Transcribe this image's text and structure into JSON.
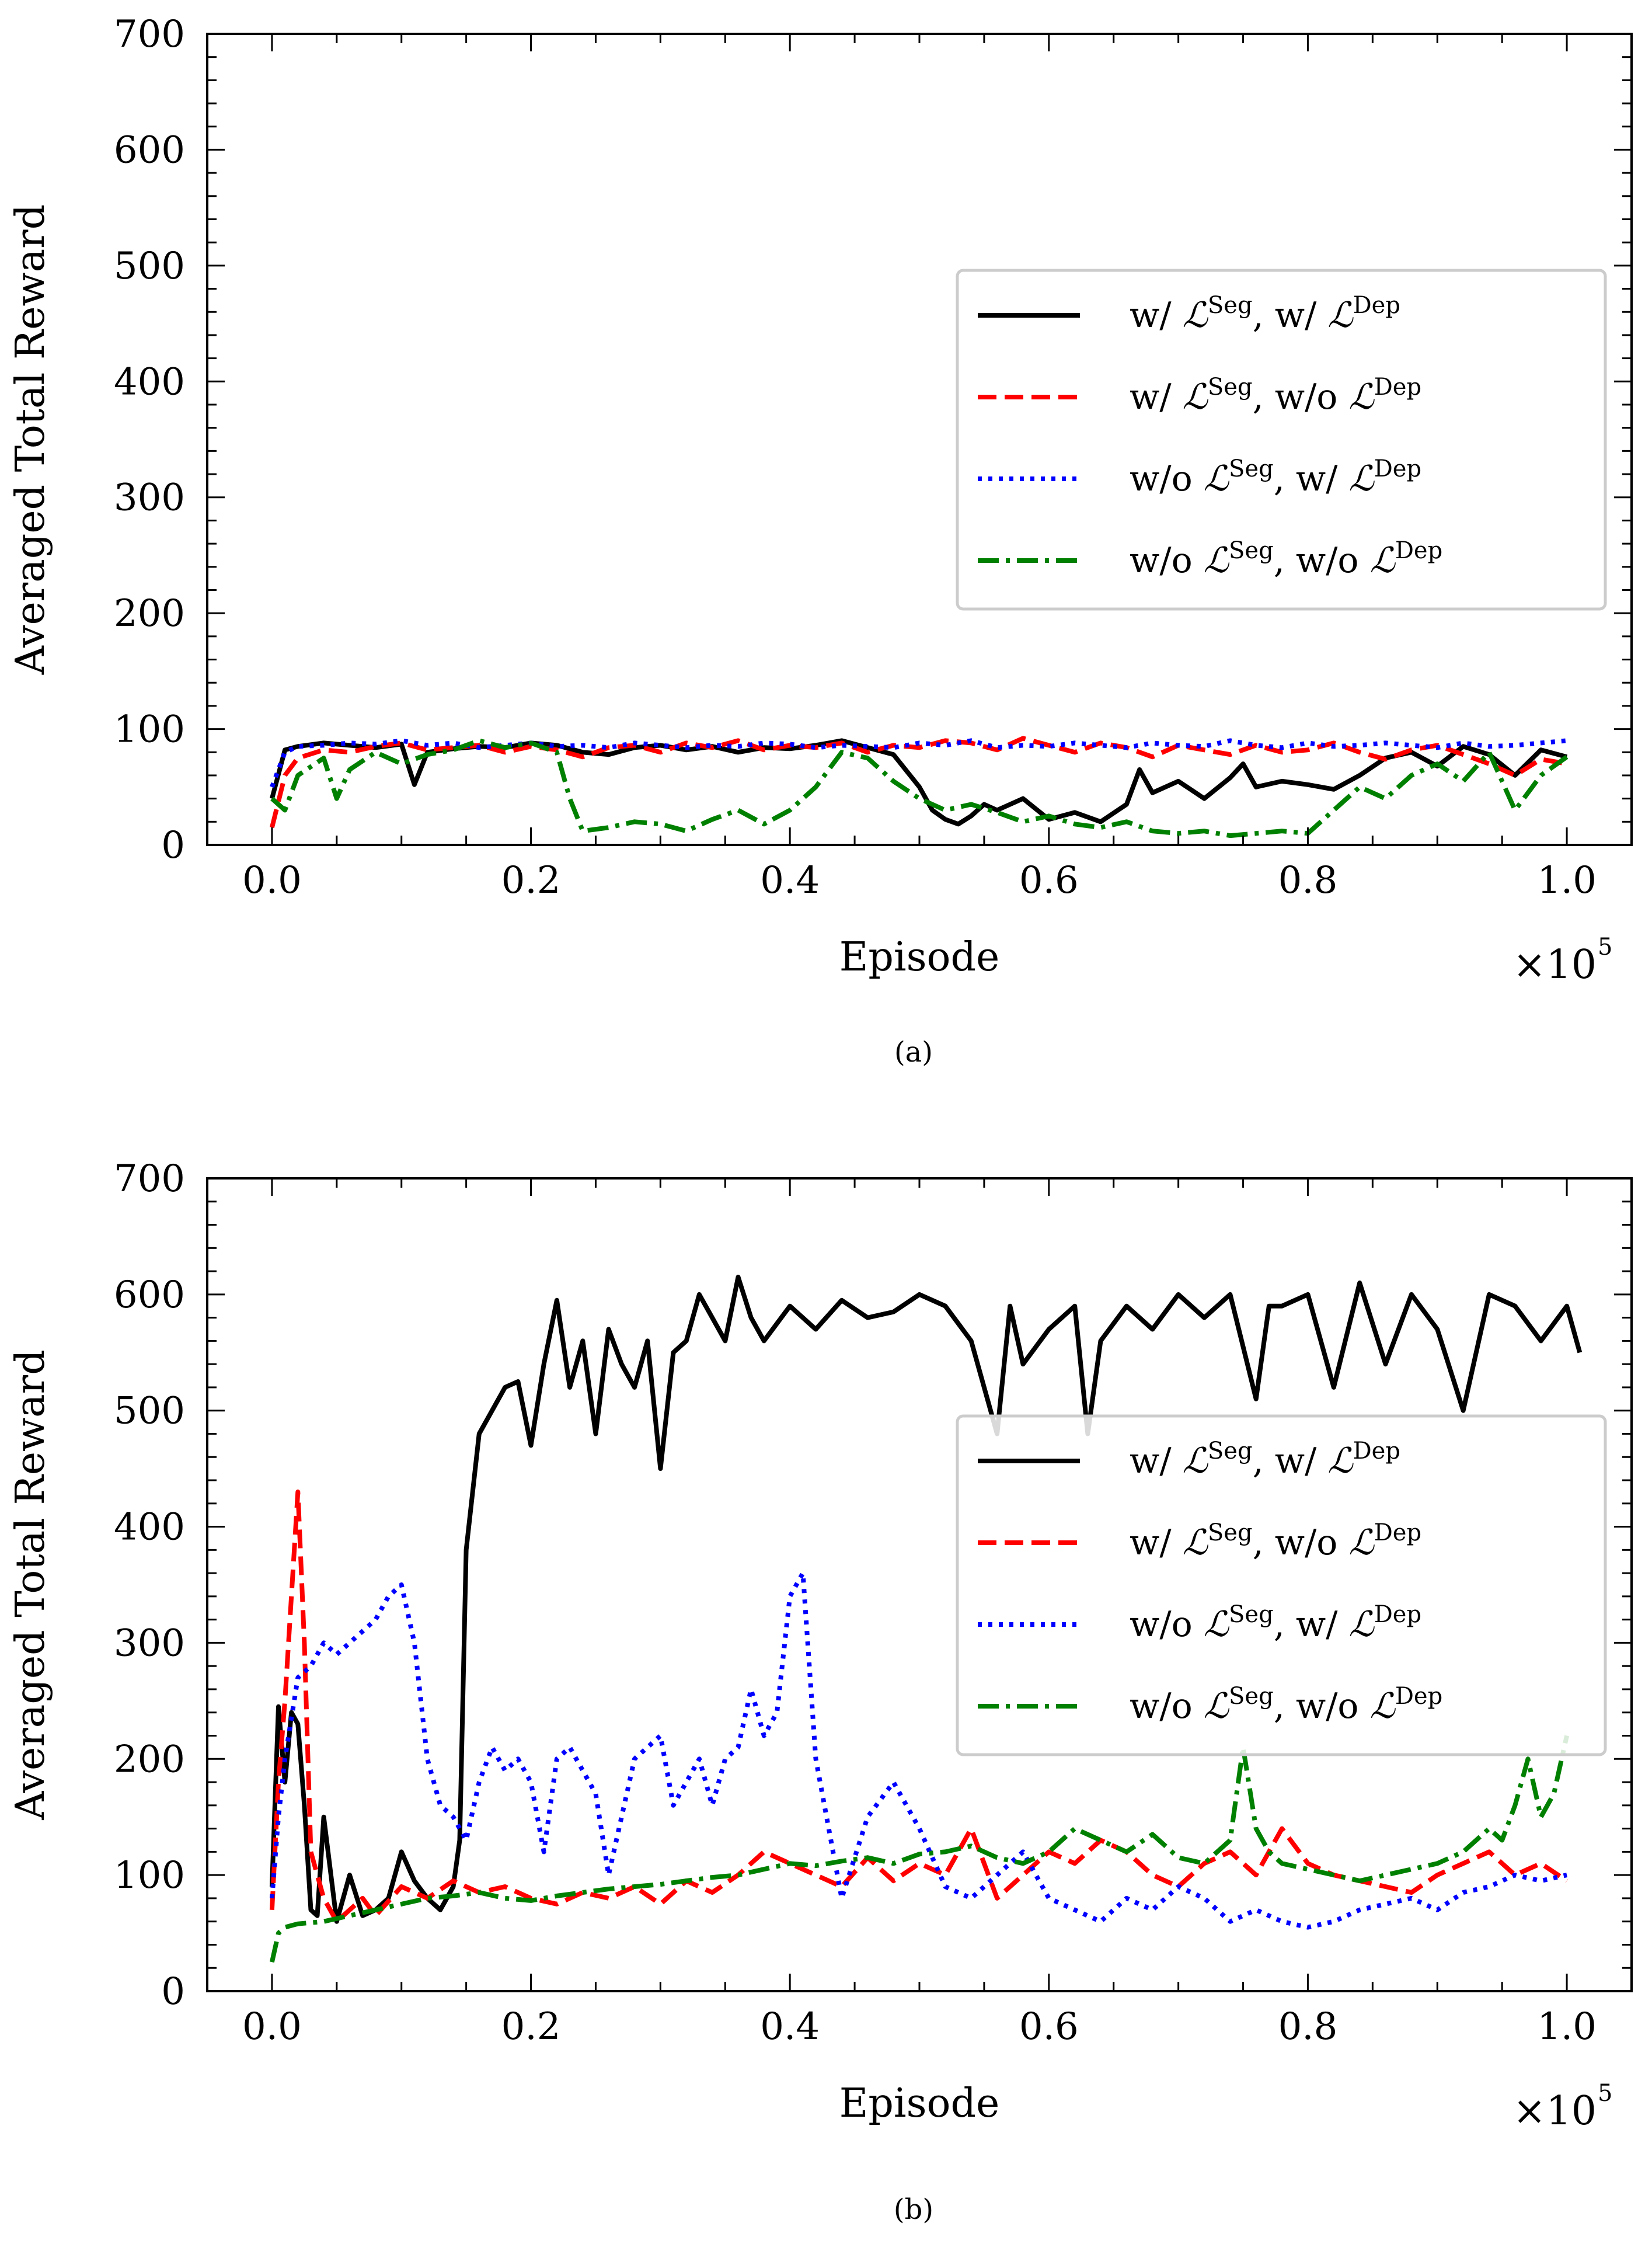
{
  "chart_data": [
    {
      "type": "line",
      "panel": "a",
      "caption": "(a)",
      "xlabel": "Episode",
      "x_multiplier": "×10",
      "x_multiplier_exp": "5",
      "ylabel": "Averaged Total Reward",
      "xlim": [
        -0.05,
        1.05
      ],
      "ylim": [
        0,
        700
      ],
      "xticks": [
        "0.0",
        "0.2",
        "0.4",
        "0.6",
        "0.8",
        "1.0"
      ],
      "yticks": [
        "0",
        "100",
        "200",
        "300",
        "400",
        "500",
        "600",
        "700"
      ],
      "legend_position": "center-right",
      "legend_symbol": "ℒ",
      "series": [
        {
          "name": "w/ ℒSeg, w/ ℒDep",
          "label_pre": "w/ ",
          "label_mid": ", w/ ",
          "color": "#000000",
          "dash": "",
          "x": [
            0,
            0.01,
            0.02,
            0.04,
            0.06,
            0.08,
            0.1,
            0.11,
            0.12,
            0.14,
            0.16,
            0.18,
            0.2,
            0.22,
            0.24,
            0.26,
            0.28,
            0.3,
            0.32,
            0.34,
            0.36,
            0.38,
            0.4,
            0.42,
            0.44,
            0.46,
            0.48,
            0.5,
            0.51,
            0.52,
            0.53,
            0.54,
            0.55,
            0.56,
            0.58,
            0.6,
            0.62,
            0.64,
            0.66,
            0.67,
            0.68,
            0.7,
            0.72,
            0.74,
            0.75,
            0.76,
            0.78,
            0.8,
            0.82,
            0.84,
            0.86,
            0.88,
            0.9,
            0.92,
            0.94,
            0.96,
            0.98,
            1.0
          ],
          "y": [
            40,
            82,
            85,
            88,
            86,
            84,
            87,
            52,
            80,
            83,
            85,
            84,
            88,
            86,
            80,
            78,
            84,
            86,
            82,
            85,
            80,
            84,
            83,
            86,
            90,
            84,
            78,
            50,
            30,
            22,
            18,
            25,
            35,
            30,
            40,
            22,
            28,
            20,
            35,
            65,
            45,
            55,
            40,
            58,
            70,
            50,
            55,
            52,
            48,
            60,
            75,
            80,
            68,
            85,
            78,
            60,
            82,
            76
          ]
        },
        {
          "name": "w/ ℒSeg, w/o ℒDep",
          "label_pre": "w/ ",
          "label_mid": ", w/o ",
          "color": "#ff0000",
          "dash": "32,14",
          "x": [
            0,
            0.01,
            0.02,
            0.04,
            0.06,
            0.08,
            0.1,
            0.12,
            0.14,
            0.16,
            0.18,
            0.2,
            0.22,
            0.24,
            0.26,
            0.28,
            0.3,
            0.32,
            0.34,
            0.36,
            0.38,
            0.4,
            0.42,
            0.44,
            0.46,
            0.48,
            0.5,
            0.52,
            0.54,
            0.56,
            0.58,
            0.6,
            0.62,
            0.64,
            0.66,
            0.68,
            0.7,
            0.72,
            0.74,
            0.76,
            0.78,
            0.8,
            0.82,
            0.84,
            0.86,
            0.88,
            0.9,
            0.92,
            0.94,
            0.96,
            0.98,
            1.0
          ],
          "y": [
            15,
            60,
            75,
            82,
            80,
            85,
            88,
            82,
            84,
            86,
            80,
            85,
            82,
            76,
            84,
            86,
            80,
            88,
            84,
            90,
            82,
            86,
            84,
            88,
            80,
            86,
            84,
            90,
            88,
            82,
            92,
            86,
            80,
            88,
            84,
            76,
            86,
            82,
            78,
            86,
            80,
            82,
            88,
            80,
            74,
            82,
            86,
            78,
            70,
            60,
            74,
            70
          ]
        },
        {
          "name": "w/o ℒSeg, w/ ℒDep",
          "label_pre": "w/o ",
          "label_mid": ", w/ ",
          "color": "#0000ff",
          "dash": "7,11",
          "x": [
            0,
            0.01,
            0.02,
            0.04,
            0.06,
            0.08,
            0.1,
            0.12,
            0.14,
            0.16,
            0.18,
            0.2,
            0.22,
            0.24,
            0.26,
            0.28,
            0.3,
            0.32,
            0.34,
            0.36,
            0.38,
            0.4,
            0.42,
            0.44,
            0.46,
            0.48,
            0.5,
            0.52,
            0.54,
            0.56,
            0.58,
            0.6,
            0.62,
            0.64,
            0.66,
            0.68,
            0.7,
            0.72,
            0.74,
            0.76,
            0.78,
            0.8,
            0.82,
            0.84,
            0.86,
            0.88,
            0.9,
            0.92,
            0.94,
            0.96,
            0.98,
            1.0
          ],
          "y": [
            50,
            80,
            85,
            86,
            88,
            87,
            90,
            86,
            88,
            84,
            86,
            88,
            85,
            86,
            84,
            88,
            86,
            84,
            86,
            85,
            88,
            87,
            84,
            86,
            85,
            84,
            88,
            86,
            90,
            84,
            86,
            85,
            88,
            86,
            84,
            88,
            86,
            85,
            90,
            86,
            84,
            88,
            85,
            86,
            88,
            86,
            84,
            88,
            85,
            86,
            88,
            90
          ]
        },
        {
          "name": "w/o ℒSeg, w/o ℒDep",
          "label_pre": "w/o ",
          "label_mid": ", w/o ",
          "color": "#008000",
          "dash": "36,12,7,12",
          "x": [
            0,
            0.01,
            0.02,
            0.04,
            0.05,
            0.06,
            0.08,
            0.1,
            0.12,
            0.14,
            0.16,
            0.18,
            0.2,
            0.22,
            0.23,
            0.24,
            0.26,
            0.28,
            0.3,
            0.32,
            0.34,
            0.36,
            0.38,
            0.4,
            0.42,
            0.44,
            0.46,
            0.48,
            0.5,
            0.52,
            0.54,
            0.56,
            0.58,
            0.6,
            0.62,
            0.64,
            0.66,
            0.68,
            0.7,
            0.72,
            0.74,
            0.76,
            0.78,
            0.8,
            0.82,
            0.84,
            0.86,
            0.88,
            0.9,
            0.92,
            0.94,
            0.96,
            0.98,
            1.0
          ],
          "y": [
            40,
            30,
            60,
            75,
            40,
            65,
            80,
            70,
            78,
            82,
            90,
            84,
            88,
            80,
            40,
            12,
            15,
            20,
            18,
            12,
            22,
            30,
            18,
            30,
            50,
            80,
            75,
            55,
            40,
            30,
            35,
            28,
            20,
            25,
            18,
            15,
            20,
            12,
            10,
            12,
            8,
            10,
            12,
            10,
            30,
            50,
            40,
            60,
            70,
            55,
            80,
            30,
            60,
            76
          ]
        }
      ]
    },
    {
      "type": "line",
      "panel": "b",
      "caption": "(b)",
      "xlabel": "Episode",
      "x_multiplier": "×10",
      "x_multiplier_exp": "5",
      "ylabel": "Averaged Total Reward",
      "xlim": [
        -0.05,
        1.05
      ],
      "ylim": [
        0,
        700
      ],
      "xticks": [
        "0.0",
        "0.2",
        "0.4",
        "0.6",
        "0.8",
        "1.0"
      ],
      "yticks": [
        "0",
        "100",
        "200",
        "300",
        "400",
        "500",
        "600",
        "700"
      ],
      "legend_position": "center-right",
      "legend_symbol": "ℒ",
      "series": [
        {
          "name": "w/ ℒSeg, w/ ℒDep",
          "label_pre": "w/ ",
          "label_mid": ", w/ ",
          "color": "#000000",
          "dash": "",
          "x": [
            0,
            0.005,
            0.01,
            0.015,
            0.02,
            0.025,
            0.03,
            0.035,
            0.04,
            0.05,
            0.06,
            0.07,
            0.08,
            0.09,
            0.1,
            0.11,
            0.12,
            0.13,
            0.14,
            0.145,
            0.15,
            0.16,
            0.17,
            0.18,
            0.19,
            0.2,
            0.21,
            0.22,
            0.23,
            0.24,
            0.25,
            0.26,
            0.27,
            0.28,
            0.29,
            0.3,
            0.31,
            0.32,
            0.33,
            0.34,
            0.35,
            0.36,
            0.37,
            0.38,
            0.4,
            0.42,
            0.44,
            0.46,
            0.48,
            0.5,
            0.52,
            0.54,
            0.56,
            0.57,
            0.58,
            0.6,
            0.62,
            0.63,
            0.64,
            0.66,
            0.68,
            0.7,
            0.72,
            0.74,
            0.76,
            0.77,
            0.78,
            0.8,
            0.82,
            0.84,
            0.86,
            0.88,
            0.9,
            0.92,
            0.94,
            0.96,
            0.98,
            1.0,
            1.01
          ],
          "y": [
            90,
            245,
            180,
            240,
            230,
            160,
            70,
            65,
            150,
            60,
            100,
            65,
            70,
            80,
            120,
            95,
            80,
            70,
            90,
            130,
            380,
            480,
            500,
            520,
            525,
            470,
            540,
            595,
            520,
            560,
            480,
            570,
            540,
            520,
            560,
            450,
            550,
            560,
            600,
            580,
            560,
            615,
            580,
            560,
            590,
            570,
            595,
            580,
            585,
            600,
            590,
            560,
            480,
            590,
            540,
            570,
            590,
            480,
            560,
            590,
            570,
            600,
            580,
            600,
            510,
            590,
            590,
            600,
            520,
            610,
            540,
            600,
            570,
            500,
            600,
            590,
            560,
            590,
            550
          ]
        },
        {
          "name": "w/ ℒSeg, w/o ℒDep",
          "label_pre": "w/ ",
          "label_mid": ", w/o ",
          "color": "#ff0000",
          "dash": "32,14",
          "x": [
            0,
            0.005,
            0.01,
            0.015,
            0.02,
            0.025,
            0.03,
            0.04,
            0.05,
            0.06,
            0.07,
            0.08,
            0.1,
            0.12,
            0.14,
            0.16,
            0.18,
            0.2,
            0.22,
            0.24,
            0.26,
            0.28,
            0.3,
            0.32,
            0.34,
            0.36,
            0.38,
            0.4,
            0.42,
            0.44,
            0.46,
            0.48,
            0.5,
            0.52,
            0.54,
            0.56,
            0.58,
            0.6,
            0.62,
            0.64,
            0.66,
            0.68,
            0.7,
            0.72,
            0.74,
            0.76,
            0.78,
            0.8,
            0.82,
            0.84,
            0.86,
            0.88,
            0.9,
            0.92,
            0.94,
            0.96,
            0.98,
            1.0
          ],
          "y": [
            70,
            180,
            250,
            340,
            430,
            300,
            120,
            80,
            60,
            70,
            80,
            65,
            90,
            80,
            95,
            85,
            90,
            80,
            75,
            85,
            80,
            90,
            75,
            95,
            85,
            100,
            120,
            110,
            100,
            90,
            115,
            95,
            110,
            100,
            140,
            80,
            100,
            120,
            110,
            130,
            120,
            100,
            90,
            110,
            120,
            100,
            140,
            110,
            100,
            95,
            90,
            85,
            100,
            110,
            120,
            100,
            110,
            95
          ]
        },
        {
          "name": "w/o ℒSeg, w/ ℒDep",
          "label_pre": "w/o ",
          "label_mid": ", w/ ",
          "color": "#0000ff",
          "dash": "7,11",
          "x": [
            0,
            0.005,
            0.01,
            0.02,
            0.03,
            0.04,
            0.05,
            0.06,
            0.07,
            0.08,
            0.09,
            0.1,
            0.11,
            0.12,
            0.13,
            0.14,
            0.15,
            0.16,
            0.17,
            0.18,
            0.19,
            0.2,
            0.21,
            0.22,
            0.23,
            0.24,
            0.25,
            0.26,
            0.27,
            0.28,
            0.29,
            0.3,
            0.31,
            0.32,
            0.33,
            0.34,
            0.35,
            0.36,
            0.37,
            0.38,
            0.39,
            0.4,
            0.41,
            0.42,
            0.44,
            0.46,
            0.48,
            0.5,
            0.52,
            0.54,
            0.56,
            0.58,
            0.6,
            0.62,
            0.64,
            0.66,
            0.68,
            0.7,
            0.72,
            0.74,
            0.76,
            0.78,
            0.8,
            0.82,
            0.84,
            0.86,
            0.88,
            0.9,
            0.92,
            0.94,
            0.96,
            0.98,
            1.0
          ],
          "y": [
            80,
            150,
            200,
            270,
            280,
            300,
            290,
            300,
            310,
            320,
            340,
            350,
            300,
            200,
            160,
            150,
            130,
            180,
            210,
            190,
            200,
            180,
            120,
            200,
            210,
            190,
            170,
            100,
            150,
            200,
            210,
            220,
            160,
            180,
            200,
            160,
            200,
            210,
            260,
            220,
            240,
            340,
            360,
            200,
            80,
            150,
            180,
            140,
            90,
            80,
            100,
            120,
            80,
            70,
            60,
            80,
            70,
            90,
            80,
            60,
            70,
            60,
            55,
            60,
            70,
            75,
            80,
            70,
            85,
            90,
            100,
            95,
            100
          ]
        },
        {
          "name": "w/o ℒSeg, w/o ℒDep",
          "label_pre": "w/o ",
          "label_mid": ", w/o ",
          "color": "#008000",
          "dash": "36,12,7,12",
          "x": [
            0,
            0.005,
            0.01,
            0.02,
            0.04,
            0.06,
            0.08,
            0.1,
            0.12,
            0.14,
            0.16,
            0.18,
            0.2,
            0.22,
            0.24,
            0.26,
            0.28,
            0.3,
            0.32,
            0.34,
            0.36,
            0.38,
            0.4,
            0.42,
            0.44,
            0.46,
            0.48,
            0.5,
            0.52,
            0.54,
            0.56,
            0.58,
            0.6,
            0.62,
            0.64,
            0.66,
            0.68,
            0.7,
            0.72,
            0.74,
            0.75,
            0.76,
            0.77,
            0.78,
            0.8,
            0.82,
            0.84,
            0.86,
            0.88,
            0.9,
            0.92,
            0.94,
            0.95,
            0.96,
            0.97,
            0.98,
            0.99,
            1.0
          ],
          "y": [
            25,
            50,
            55,
            58,
            60,
            65,
            70,
            75,
            80,
            82,
            85,
            80,
            78,
            82,
            85,
            88,
            90,
            92,
            95,
            98,
            100,
            105,
            110,
            108,
            112,
            115,
            110,
            118,
            120,
            125,
            115,
            110,
            120,
            140,
            130,
            120,
            135,
            115,
            110,
            130,
            210,
            140,
            120,
            110,
            105,
            100,
            95,
            100,
            105,
            110,
            120,
            140,
            130,
            160,
            200,
            150,
            170,
            220
          ]
        }
      ]
    }
  ]
}
